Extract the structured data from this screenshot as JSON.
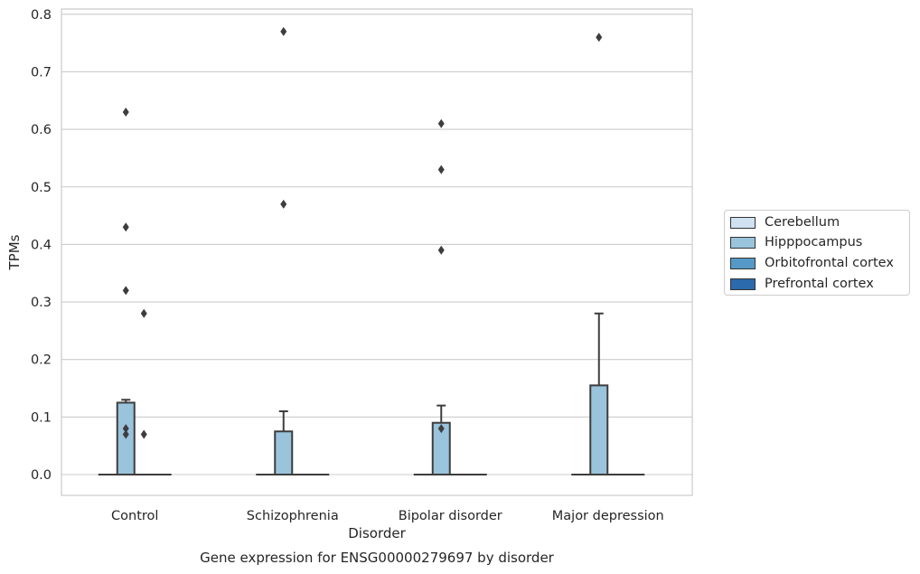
{
  "chart_data": {
    "type": "box",
    "title": "Gene expression for ENSG00000279697 by disorder",
    "xlabel": "Disorder",
    "ylabel": "TPMs",
    "ylim": [
      -0.04,
      0.81
    ],
    "yticks": [
      "0.0",
      "0.1",
      "0.2",
      "0.3",
      "0.4",
      "0.5",
      "0.6",
      "0.7",
      "0.8"
    ],
    "categories": [
      "Control",
      "Schizophrenia",
      "Bipolar disorder",
      "Major depression"
    ],
    "grid": true,
    "legend_position": "right",
    "series": [
      {
        "name": "Cerebellum",
        "color": "#d0e1f2",
        "boxes": [
          {
            "min": 0,
            "q1": 0,
            "median": 0,
            "q3": 0,
            "max": 0,
            "outliers": []
          },
          {
            "min": 0,
            "q1": 0,
            "median": 0,
            "q3": 0,
            "max": 0,
            "outliers": []
          },
          {
            "min": 0,
            "q1": 0,
            "median": 0,
            "q3": 0,
            "max": 0,
            "outliers": []
          },
          {
            "min": 0,
            "q1": 0,
            "median": 0,
            "q3": 0,
            "max": 0,
            "outliers": []
          }
        ]
      },
      {
        "name": "Hipppocampus",
        "color": "#9ac3dc",
        "boxes": [
          {
            "min": 0,
            "q1": 0,
            "median": 0,
            "q3": 0.125,
            "max": 0.13,
            "outliers": [
              0.63,
              0.43,
              0.32,
              0.08,
              0.07
            ]
          },
          {
            "min": 0,
            "q1": 0,
            "median": 0,
            "q3": 0.075,
            "max": 0.11,
            "outliers": [
              0.77,
              0.47
            ]
          },
          {
            "min": 0,
            "q1": 0,
            "median": 0,
            "q3": 0.09,
            "max": 0.12,
            "outliers": [
              0.61,
              0.53,
              0.39,
              0.08
            ]
          },
          {
            "min": 0,
            "q1": 0,
            "median": 0,
            "q3": 0.155,
            "max": 0.28,
            "outliers": [
              0.76
            ]
          }
        ]
      },
      {
        "name": "Orbitofrontal cortex",
        "color": "#5599c8",
        "boxes": [
          {
            "min": 0,
            "q1": 0,
            "median": 0,
            "q3": 0,
            "max": 0,
            "outliers": [
              0.28,
              0.07
            ]
          },
          {
            "min": 0,
            "q1": 0,
            "median": 0,
            "q3": 0,
            "max": 0,
            "outliers": []
          },
          {
            "min": 0,
            "q1": 0,
            "median": 0,
            "q3": 0,
            "max": 0,
            "outliers": []
          },
          {
            "min": 0,
            "q1": 0,
            "median": 0,
            "q3": 0,
            "max": 0,
            "outliers": []
          }
        ]
      },
      {
        "name": "Prefrontal cortex",
        "color": "#2b6aac",
        "boxes": [
          {
            "min": 0,
            "q1": 0,
            "median": 0,
            "q3": 0,
            "max": 0,
            "outliers": []
          },
          {
            "min": 0,
            "q1": 0,
            "median": 0,
            "q3": 0,
            "max": 0,
            "outliers": []
          },
          {
            "min": 0,
            "q1": 0,
            "median": 0,
            "q3": 0,
            "max": 0,
            "outliers": []
          },
          {
            "min": 0,
            "q1": 0,
            "median": 0,
            "q3": 0,
            "max": 0,
            "outliers": []
          }
        ]
      }
    ]
  }
}
